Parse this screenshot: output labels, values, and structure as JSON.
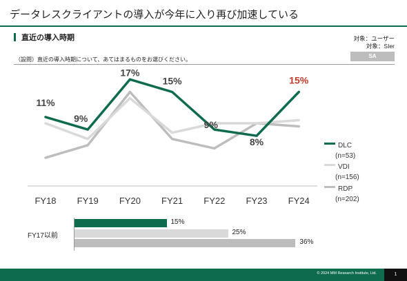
{
  "header": {
    "title": "データレスクライアントの導入が今年に入り再び加速している"
  },
  "section": {
    "title": "直近の導入時期"
  },
  "targets": [
    "対象：ユーザー",
    "対象：SIer"
  ],
  "badge": "SA",
  "question": "（設問）直近の導入時期について、あてはまるものをお選びください。",
  "colors": {
    "DLC": "#0e6b4e",
    "VDI": "#d9d9d9",
    "RDP": "#bdbdbd",
    "highlight": "#c0392b"
  },
  "chart_data": [
    {
      "type": "line",
      "categories": [
        "FY18",
        "FY19",
        "FY20",
        "FY21",
        "FY22",
        "FY23",
        "FY24"
      ],
      "series": [
        {
          "name": "DLC",
          "n_label": "(n=53)",
          "values": [
            11,
            9,
            17,
            15,
            9,
            8,
            15
          ],
          "labels": [
            "11%",
            "9%",
            "17%",
            "15%",
            "9%",
            "8%",
            "15%"
          ]
        },
        {
          "name": "VDI",
          "n_label": "(n=156)",
          "values": [
            10,
            7.5,
            14,
            8.5,
            10,
            10,
            10.5
          ]
        },
        {
          "name": "RDP",
          "n_label": "(n=202)",
          "values": [
            4.5,
            6.5,
            15,
            7.5,
            6,
            10,
            9.5
          ]
        }
      ],
      "ylim": [
        0,
        20
      ],
      "legend": "right"
    },
    {
      "type": "bar",
      "orientation": "horizontal",
      "category": "FY17以前",
      "series": [
        {
          "name": "DLC",
          "value": 15,
          "label": "15%"
        },
        {
          "name": "VDI",
          "value": 25,
          "label": "25%"
        },
        {
          "name": "RDP",
          "value": 36,
          "label": "36%"
        }
      ]
    }
  ],
  "footer": {
    "copyright": "© 2024 MM Research Institute, Ltd.",
    "page": "1"
  }
}
